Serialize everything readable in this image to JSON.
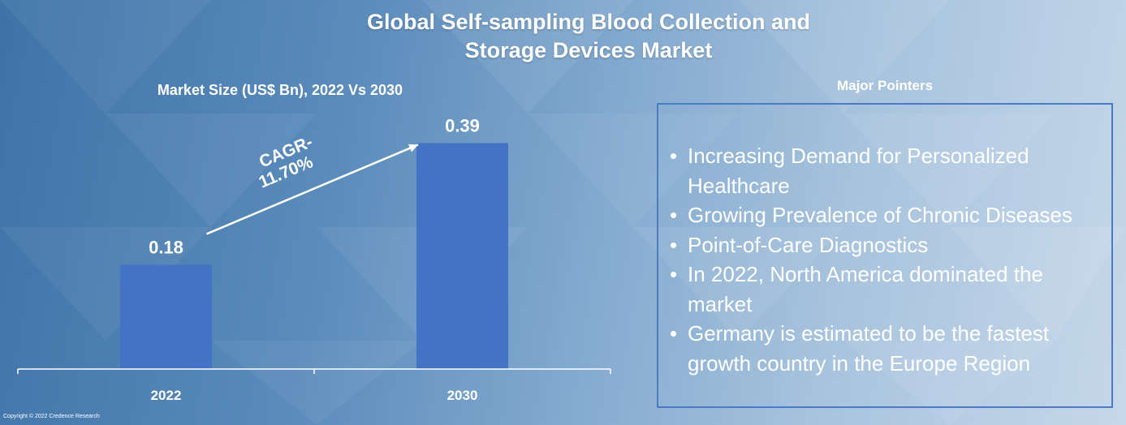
{
  "title_line1": "Global Self-sampling Blood Collection and",
  "title_line2": "Storage Devices Market",
  "chart_data": {
    "type": "bar",
    "title": "Market Size (US$ Bn), 2022 Vs 2030",
    "categories": [
      "2022",
      "2030"
    ],
    "values": [
      0.18,
      0.39
    ],
    "value_labels": [
      "0.18",
      "0.39"
    ],
    "ylim": [
      0,
      0.42
    ],
    "annotation": {
      "line1": "CAGR-",
      "line2": "11.70%"
    },
    "bar_color": "#4472c4",
    "grid": false,
    "legend": "none"
  },
  "pointers": {
    "heading": "Major Pointers",
    "items": [
      "Increasing Demand for Personalized Healthcare",
      "Growing Prevalence of Chronic Diseases",
      "Point-of-Care Diagnostics",
      "In 2022, North America dominated the market",
      "Germany is estimated to be the fastest growth country in the Europe Region"
    ]
  },
  "copyright": "Copyright © 2022 Credence Research"
}
